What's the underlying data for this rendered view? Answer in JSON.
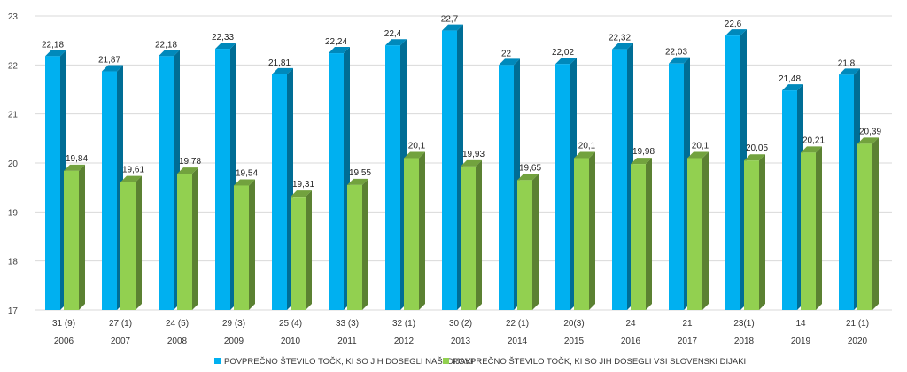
{
  "chart_data": {
    "type": "bar",
    "title": "",
    "xlabel": "",
    "ylabel": "",
    "ylim": [
      17,
      23
    ],
    "yticks": [
      17,
      18,
      19,
      20,
      21,
      22,
      23
    ],
    "grid": true,
    "legend_position": "bottom",
    "categories": [
      "2006",
      "2007",
      "2008",
      "2009",
      "2010",
      "2011",
      "2012",
      "2013",
      "2014",
      "2015",
      "2016",
      "2017",
      "2018",
      "2019",
      "2020"
    ],
    "category_sublabels": [
      "31 (9)",
      "27 (1)",
      "24 (5)",
      "29 (3)",
      "25 (4)",
      "33 (3)",
      "32 (1)",
      "30 (2)",
      "22 (1)",
      "20(3)",
      "24",
      "21",
      "23(1)",
      "14",
      "21 (1)"
    ],
    "series": [
      {
        "name": "POVPREČNO ŠTEVILO TOČK, KI SO JIH DOSEGLI NAŠI DIJAKI",
        "color": "#00b0f0",
        "values": [
          22.18,
          21.87,
          22.18,
          22.33,
          21.81,
          22.24,
          22.4,
          22.7,
          22,
          22.02,
          22.32,
          22.03,
          22.6,
          21.48,
          21.8
        ],
        "labels": [
          "22,18",
          "21,87",
          "22,18",
          "22,33",
          "21,81",
          "22,24",
          "22,4",
          "22,7",
          "22",
          "22,02",
          "22,32",
          "22,03",
          "22,6",
          "21,48",
          "21,8"
        ]
      },
      {
        "name": "POVPREČNO ŠTEVILO TOČK, KI SO JIH DOSEGLI VSI SLOVENSKI DIJAKI",
        "color": "#92d050",
        "values": [
          19.84,
          19.61,
          19.78,
          19.54,
          19.31,
          19.55,
          20.1,
          19.93,
          19.65,
          20.1,
          19.98,
          20.1,
          20.05,
          20.21,
          20.39
        ],
        "labels": [
          "19,84",
          "19,61",
          "19,78",
          "19,54",
          "19,31",
          "19,55",
          "20,1",
          "19,93",
          "19,65",
          "20,1",
          "19,98",
          "20,1",
          "20,05",
          "20,21",
          "20,39"
        ]
      }
    ]
  }
}
